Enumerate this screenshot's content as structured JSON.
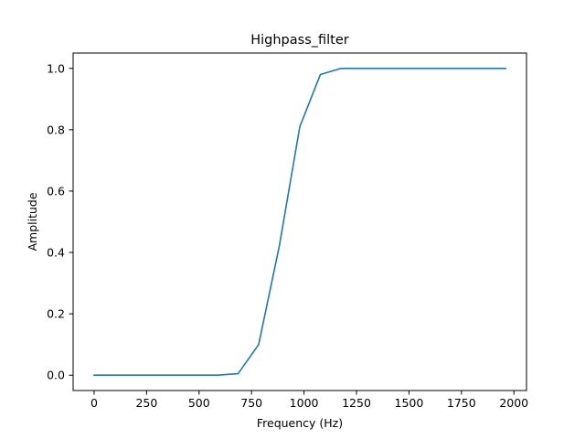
{
  "chart_data": {
    "type": "line",
    "title": "Highpass_filter",
    "xlabel": "Frequency (Hz)",
    "ylabel": "Amplitude",
    "xlim": [
      -100,
      2060
    ],
    "ylim": [
      -0.05,
      1.05
    ],
    "x_ticks": [
      0,
      250,
      500,
      750,
      1000,
      1250,
      1500,
      1750,
      2000
    ],
    "x_tick_labels": [
      "0",
      "250",
      "500",
      "750",
      "1000",
      "1250",
      "1500",
      "1750",
      "2000"
    ],
    "y_ticks": [
      0.0,
      0.2,
      0.4,
      0.6,
      0.8,
      1.0
    ],
    "y_tick_labels": [
      "0.0",
      "0.2",
      "0.4",
      "0.6",
      "0.8",
      "1.0"
    ],
    "grid": false,
    "legend": "none",
    "series": [
      {
        "color": "#1f77b4",
        "x": [
          0,
          98,
          196,
          294,
          392,
          490,
          588,
          686,
          784,
          882,
          980,
          1078,
          1176,
          1274,
          1372,
          1470,
          1568,
          1666,
          1764,
          1862,
          1960
        ],
        "y": [
          0.0,
          0.0,
          0.0,
          0.0,
          0.0,
          0.0,
          0.0,
          0.005,
          0.1,
          0.42,
          0.81,
          0.98,
          1.0,
          1.0,
          1.0,
          1.0,
          1.0,
          1.0,
          1.0,
          1.0,
          1.0
        ]
      }
    ]
  }
}
